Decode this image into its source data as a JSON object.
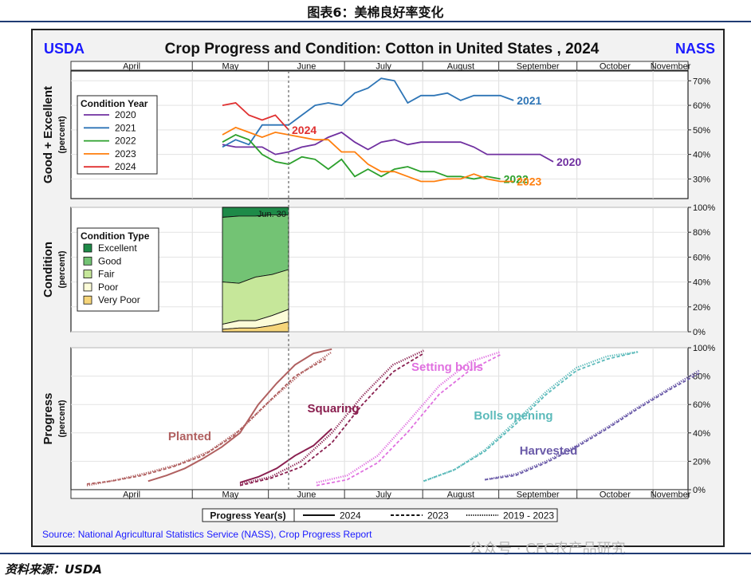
{
  "figure_title": "图表6：美棉良好率变化",
  "source_footer": "资料来源：USDA",
  "watermark": "公众号 · CFC农产品研究",
  "chart_data": {
    "type": "line",
    "title": "Crop Progress and Condition: Cotton in United States , 2024",
    "corner_left": "USDA",
    "corner_right": "NASS",
    "source_note": "Source: National Agricultural Statistics Service (NASS), Crop Progress Report",
    "months": [
      "April",
      "May",
      "June",
      "July",
      "August",
      "September",
      "October",
      "November"
    ],
    "current_week_marker": "Jun. 30",
    "panels": {
      "good_excellent": {
        "ylabel": "Good + Excellent",
        "ysub": "(percent)",
        "ylim": [
          22,
          74
        ],
        "ticks": [
          "70%",
          "60%",
          "50%",
          "40%",
          "30%"
        ],
        "tick_values": [
          70,
          60,
          50,
          40,
          30
        ],
        "legend_title": "Condition Year",
        "series": [
          {
            "name": "2020",
            "color": "#7030a0",
            "week": [
              1,
              2,
              3,
              4,
              5,
              6,
              7,
              8,
              9,
              10,
              11,
              12,
              13,
              14,
              15,
              16,
              17,
              18,
              19,
              20,
              21,
              22,
              23,
              24,
              25,
              26,
              27,
              28
            ],
            "values": [
              44,
              43,
              43,
              43,
              40,
              41,
              43,
              44,
              47,
              49,
              45,
              42,
              45,
              46,
              44,
              45,
              45,
              45,
              45,
              43,
              40,
              40,
              40,
              40,
              40,
              37,
              null,
              null
            ],
            "end_label": "2020"
          },
          {
            "name": "2021",
            "color": "#2e75b6",
            "week": [
              1,
              2,
              3,
              4,
              5,
              6,
              7,
              8,
              9,
              10,
              11,
              12,
              13,
              14,
              15,
              16,
              17,
              18,
              19,
              20,
              21,
              22,
              23,
              24,
              25,
              26,
              27,
              28
            ],
            "values": [
              43,
              46,
              44,
              52,
              52,
              52,
              56,
              60,
              61,
              60,
              65,
              67,
              71,
              70,
              61,
              64,
              64,
              65,
              62,
              64,
              64,
              64,
              62,
              null,
              null,
              null,
              null,
              null
            ],
            "end_label": "2021"
          },
          {
            "name": "2022",
            "color": "#2ca02c",
            "week": [
              1,
              2,
              3,
              4,
              5,
              6,
              7,
              8,
              9,
              10,
              11,
              12,
              13,
              14,
              15,
              16,
              17,
              18,
              19,
              20,
              21,
              22,
              23,
              24,
              25,
              26,
              27,
              28
            ],
            "values": [
              45,
              48,
              46,
              40,
              37,
              36,
              39,
              38,
              34,
              38,
              31,
              34,
              31,
              34,
              35,
              33,
              33,
              31,
              31,
              30,
              31,
              30,
              null,
              null,
              null,
              null,
              null,
              null
            ],
            "end_label": "2022"
          },
          {
            "name": "2023",
            "color": "#ff7f0e",
            "week": [
              1,
              2,
              3,
              4,
              5,
              6,
              7,
              8,
              9,
              10,
              11,
              12,
              13,
              14,
              15,
              16,
              17,
              18,
              19,
              20,
              21,
              22,
              23,
              24,
              25,
              26,
              27,
              28
            ],
            "values": [
              48,
              51,
              49,
              47,
              49,
              48,
              47,
              46,
              46,
              41,
              41,
              36,
              33,
              33,
              31,
              29,
              29,
              30,
              30,
              32,
              30,
              29,
              29,
              null,
              null,
              null,
              null,
              null
            ],
            "end_label": "2023"
          },
          {
            "name": "2024",
            "color": "#e03030",
            "week": [
              1,
              2,
              3,
              4,
              5,
              6,
              7,
              8,
              9,
              10,
              11,
              12,
              13,
              14,
              15,
              16,
              17,
              18,
              19,
              20,
              21,
              22,
              23,
              24,
              25,
              26,
              27,
              28
            ],
            "values": [
              60,
              61,
              56,
              54,
              56,
              50,
              null,
              null,
              null,
              null,
              null,
              null,
              null,
              null,
              null,
              null,
              null,
              null,
              null,
              null,
              null,
              null,
              null,
              null,
              null,
              null,
              null,
              null
            ],
            "end_label": "2024"
          }
        ]
      },
      "condition": {
        "ylabel": "Condition",
        "ysub": "(percent)",
        "ylim": [
          0,
          100
        ],
        "ticks": [
          "100%",
          "80%",
          "60%",
          "40%",
          "20%",
          "0%"
        ],
        "tick_values": [
          100,
          80,
          60,
          40,
          20,
          0
        ],
        "legend_title": "Condition Type",
        "categories": [
          "Excellent",
          "Good",
          "Fair",
          "Poor",
          "Very Poor"
        ],
        "colors": [
          "#1e8a48",
          "#73c374",
          "#c6e79a",
          "#fcfcd8",
          "#f6d57a"
        ],
        "weeks": [
          "Jun. 2",
          "Jun. 9",
          "Jun. 16",
          "Jun. 23",
          "Jun. 30"
        ],
        "cumulative_upper": {
          "very_poor": [
            2,
            3,
            3,
            5,
            8
          ],
          "poor": [
            6,
            9,
            9,
            13,
            18
          ],
          "fair": [
            40,
            39,
            44,
            46,
            50
          ],
          "good": [
            92,
            93,
            93,
            94,
            94
          ],
          "excellent": [
            100,
            100,
            100,
            100,
            100
          ]
        }
      },
      "progress": {
        "ylabel": "Progress",
        "ysub": "(percent)",
        "ylim": [
          0,
          100
        ],
        "ticks": [
          "100%",
          "80%",
          "60%",
          "40%",
          "20%",
          "0%"
        ],
        "tick_values": [
          100,
          80,
          60,
          40,
          20,
          0
        ],
        "stages": [
          {
            "name": "Planted",
            "color": "#b06060",
            "y2024": [
              [
                8,
                6
              ],
              [
                9.2,
                10
              ],
              [
                10.4,
                15
              ],
              [
                11.6,
                22
              ],
              [
                12.8,
                30
              ],
              [
                14,
                40
              ],
              [
                15.2,
                60
              ],
              [
                16.4,
                75
              ],
              [
                17.6,
                88
              ],
              [
                18.8,
                96
              ],
              [
                20,
                99
              ]
            ],
            "y2023": [
              [
                4,
                4
              ],
              [
                5.6,
                6
              ],
              [
                7.6,
                10
              ],
              [
                9.6,
                16
              ],
              [
                11.6,
                24
              ],
              [
                13.6,
                38
              ],
              [
                15.6,
                59
              ],
              [
                17.6,
                80
              ],
              [
                19.6,
                92
              ]
            ],
            "avg": [
              [
                4,
                3
              ],
              [
                6,
                7
              ],
              [
                8,
                12
              ],
              [
                10,
                18
              ],
              [
                12,
                27
              ],
              [
                14,
                42
              ],
              [
                16,
                63
              ],
              [
                18,
                82
              ],
              [
                20,
                97
              ]
            ]
          },
          {
            "name": "Squaring",
            "color": "#8a2050",
            "y2024": [
              [
                14,
                5
              ],
              [
                15.2,
                9
              ],
              [
                16.4,
                15
              ],
              [
                17.6,
                24
              ],
              [
                18.8,
                31
              ],
              [
                20,
                43
              ]
            ],
            "y2023": [
              [
                14,
                3
              ],
              [
                16,
                8
              ],
              [
                18,
                16
              ],
              [
                20,
                33
              ],
              [
                22,
                60
              ],
              [
                24,
                83
              ],
              [
                26,
                96
              ]
            ],
            "avg": [
              [
                14,
                4
              ],
              [
                16,
                9
              ],
              [
                18,
                20
              ],
              [
                20,
                40
              ],
              [
                22,
                66
              ],
              [
                24,
                88
              ],
              [
                26,
                98
              ]
            ]
          },
          {
            "name": "Setting bolls",
            "color": "#e070e0",
            "y2023": [
              [
                19,
                3
              ],
              [
                21,
                7
              ],
              [
                23,
                19
              ],
              [
                25,
                41
              ],
              [
                27,
                67
              ],
              [
                29,
                84
              ],
              [
                31,
                95
              ]
            ],
            "avg": [
              [
                19,
                5
              ],
              [
                21,
                10
              ],
              [
                23,
                24
              ],
              [
                25,
                48
              ],
              [
                27,
                73
              ],
              [
                29,
                90
              ],
              [
                31,
                97
              ]
            ]
          },
          {
            "name": "Bolls opening",
            "color": "#5bbaba",
            "y2023": [
              [
                26,
                6
              ],
              [
                28,
                14
              ],
              [
                30,
                27
              ],
              [
                32,
                46
              ],
              [
                34,
                67
              ],
              [
                36,
                84
              ],
              [
                38,
                92
              ],
              [
                40,
                97
              ]
            ],
            "avg": [
              [
                26,
                6
              ],
              [
                28,
                14
              ],
              [
                30,
                28
              ],
              [
                32,
                48
              ],
              [
                34,
                69
              ],
              [
                36,
                86
              ],
              [
                38,
                94
              ],
              [
                40,
                97
              ]
            ]
          },
          {
            "name": "Harvested",
            "color": "#6a5aa8",
            "y2023": [
              [
                30,
                7
              ],
              [
                32,
                10
              ],
              [
                34,
                19
              ],
              [
                36,
                30
              ],
              [
                38,
                43
              ],
              [
                40,
                57
              ],
              [
                42,
                70
              ],
              [
                44,
                82
              ]
            ],
            "avg": [
              [
                30,
                7
              ],
              [
                32,
                11
              ],
              [
                34,
                20
              ],
              [
                36,
                31
              ],
              [
                38,
                44
              ],
              [
                40,
                58
              ],
              [
                42,
                71
              ],
              [
                44,
                84
              ]
            ]
          }
        ]
      }
    },
    "bottom_legend": {
      "title": "Progress Year(s)",
      "entries": [
        "2024",
        "2023",
        "2019 - 2023"
      ]
    }
  }
}
